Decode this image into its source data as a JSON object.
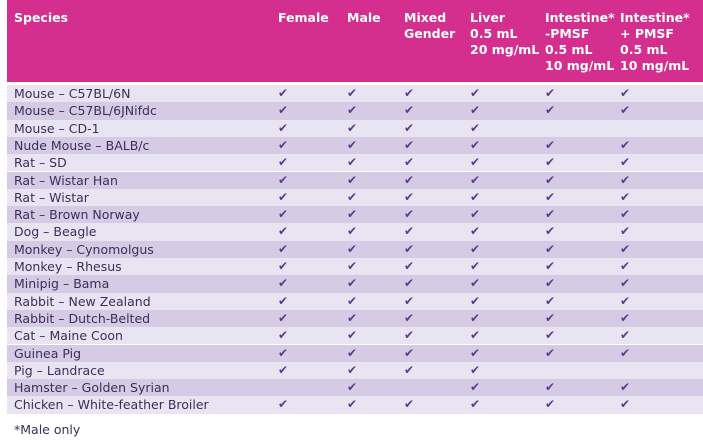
{
  "table": {
    "header": [
      [
        "Species"
      ],
      [
        "Female"
      ],
      [
        "Male"
      ],
      [
        "Mixed",
        "Gender"
      ],
      [
        "Liver",
        "0.5 mL",
        "20 mg/mL"
      ],
      [
        "Intestine*",
        "-PMSF",
        "0.5 mL",
        "10 mg/mL"
      ],
      [
        "Intestine*",
        "+ PMSF",
        "0.5 mL",
        "10 mg/mL"
      ]
    ],
    "rows": [
      [
        "Mouse – C57BL/6N",
        "✔",
        "✔",
        "✔",
        "✔",
        "✔",
        "✔"
      ],
      [
        "Mouse – C57BL/6JNifdc",
        "✔",
        "✔",
        "✔",
        "✔",
        "✔",
        "✔"
      ],
      [
        "Mouse – CD-1",
        "✔",
        "✔",
        "✔",
        "✔",
        null,
        null
      ],
      [
        "Nude Mouse – BALB/c",
        "✔",
        "✔",
        "✔",
        "✔",
        "✔",
        "✔"
      ],
      [
        "Rat – SD",
        "✔",
        "✔",
        "✔",
        "✔",
        "✔",
        "✔"
      ],
      [
        "Rat – Wistar Han",
        "✔",
        "✔",
        "✔",
        "✔",
        "✔",
        "✔"
      ],
      [
        "Rat – Wistar",
        "✔",
        "✔",
        "✔",
        "✔",
        "✔",
        "✔"
      ],
      [
        "Rat – Brown Norway",
        "✔",
        "✔",
        "✔",
        "✔",
        "✔",
        "✔"
      ],
      [
        "Dog – Beagle",
        "✔",
        "✔",
        "✔",
        "✔",
        "✔",
        "✔"
      ],
      [
        "Monkey – Cynomolgus",
        "✔",
        "✔",
        "✔",
        "✔",
        "✔",
        "✔"
      ],
      [
        "Monkey – Rhesus",
        "✔",
        "✔",
        "✔",
        "✔",
        "✔",
        "✔"
      ],
      [
        "Minipig – Bama",
        "✔",
        "✔",
        "✔",
        "✔",
        "✔",
        "✔"
      ],
      [
        "Rabbit – New Zealand",
        "✔",
        "✔",
        "✔",
        "✔",
        "✔",
        "✔"
      ],
      [
        "Rabbit – Dutch-Belted",
        "✔",
        "✔",
        "✔",
        "✔",
        "✔",
        "✔"
      ],
      [
        "Cat – Maine Coon",
        "✔",
        "✔",
        "✔",
        "✔",
        "✔",
        "✔"
      ],
      [
        "Guinea Pig",
        "✔",
        "✔",
        "✔",
        "✔",
        "✔",
        "✔"
      ],
      [
        "Pig – Landrace",
        "✔",
        "✔",
        "✔",
        "✔",
        null,
        null
      ],
      [
        "Hamster – Golden Syrian",
        null,
        "✔",
        null,
        "✔",
        "✔",
        "✔"
      ],
      [
        "Chicken – White-feather Broiler",
        "✔",
        "✔",
        "✔",
        "✔",
        "✔",
        "✔"
      ]
    ]
  },
  "footnote": "*Male only"
}
